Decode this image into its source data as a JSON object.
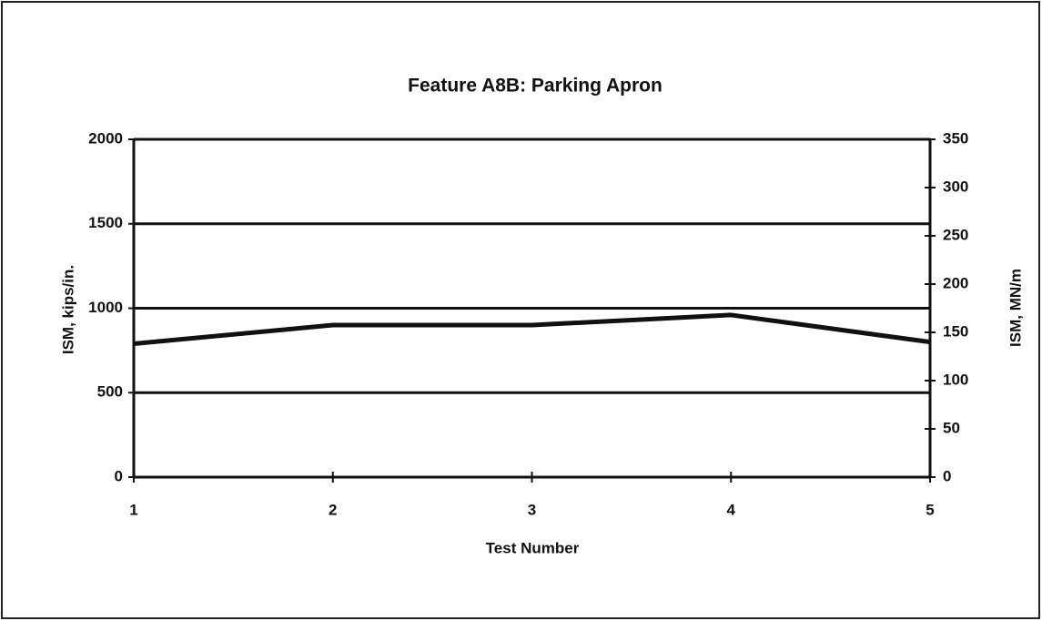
{
  "chart_data": {
    "type": "line",
    "title": "Feature A8B:  Parking Apron",
    "x_label": "Test Number",
    "y_label": "ISM, kips/in.",
    "y2_label": "ISM, MN/m",
    "x": [
      1,
      2,
      3,
      4,
      5
    ],
    "values": [
      790,
      900,
      900,
      960,
      800
    ],
    "color": "#111111",
    "xlim": [
      1,
      5
    ],
    "xticks": [
      1,
      2,
      3,
      4,
      5
    ],
    "ylim": [
      0,
      2000
    ],
    "yticks": [
      0,
      500,
      1000,
      1500,
      2000
    ],
    "y2lim": [
      0,
      350
    ],
    "y2ticks": [
      0,
      50,
      100,
      150,
      200,
      250,
      300,
      350
    ],
    "grid": true
  }
}
